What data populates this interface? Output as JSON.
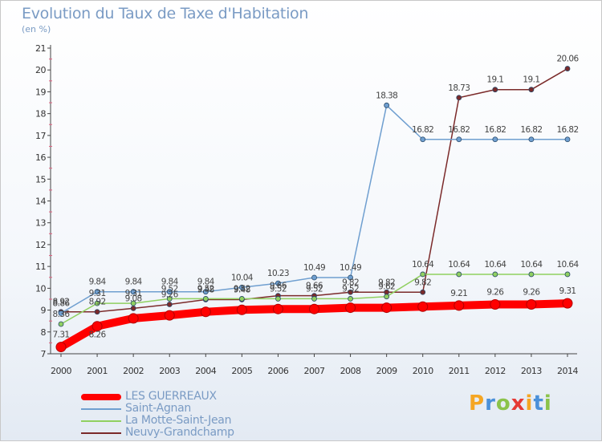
{
  "title": "Evolution du Taux de Taxe d'Habitation",
  "subtitle": "(en %)",
  "logo_text": "Proxiti",
  "chart_data": {
    "type": "line",
    "x": [
      "2000",
      "2001",
      "2002",
      "2003",
      "2004",
      "2005",
      "2006",
      "2007",
      "2008",
      "2009",
      "2010",
      "2011",
      "2012",
      "2013",
      "2014"
    ],
    "ylim": [
      7,
      21
    ],
    "yticks": [
      7,
      8,
      9,
      10,
      11,
      12,
      13,
      14,
      15,
      16,
      17,
      18,
      19,
      20,
      21
    ],
    "grid": false,
    "legend_position": "bottom-left",
    "series": [
      {
        "name": "LES GUERREAUX",
        "color": "#ff0000",
        "values": [
          7.31,
          8.26,
          8.62,
          8.76,
          8.92,
          9.01,
          9.05,
          9.05,
          9.11,
          9.11,
          9.16,
          9.21,
          9.26,
          9.26,
          9.31
        ],
        "labels": [
          "7.31",
          "8.26",
          "",
          "",
          "",
          "",
          "",
          "",
          "",
          "",
          "",
          "9.21",
          "9.26",
          "9.26",
          "9.31"
        ]
      },
      {
        "name": "Saint-Agnan",
        "color": "#6f9fd0",
        "values": [
          8.86,
          9.84,
          9.84,
          9.84,
          9.84,
          10.04,
          10.23,
          10.49,
          10.49,
          18.38,
          16.82,
          16.82,
          16.82,
          16.82,
          16.82
        ],
        "labels": [
          "8.86",
          "9.84",
          "9.84",
          "9.84",
          "9.84",
          "10.04",
          "10.23",
          "10.49",
          "10.49",
          "18.38",
          "16.82",
          "16.82",
          "16.82",
          "16.82",
          "16.82"
        ]
      },
      {
        "name": "La Motte-Saint-Jean",
        "color": "#90d060",
        "values": [
          8.36,
          9.31,
          9.31,
          9.52,
          9.52,
          9.52,
          9.52,
          9.52,
          9.52,
          9.62,
          10.64,
          10.64,
          10.64,
          10.64,
          10.64
        ],
        "labels": [
          "8.36",
          "9.31",
          "9.31",
          "9.52",
          "9.52",
          "9.52",
          "9.52",
          "9.52",
          "9.52",
          "9.62",
          "10.64",
          "10.64",
          "10.64",
          "10.64",
          "10.64"
        ]
      },
      {
        "name": "Neuvy-Grandchamp",
        "color": "#7b2a2a",
        "values": [
          8.92,
          8.92,
          9.08,
          9.26,
          9.48,
          9.48,
          9.66,
          9.66,
          9.82,
          9.82,
          9.82,
          18.73,
          19.1,
          19.1,
          20.06
        ],
        "labels": [
          "8.92",
          "8.92",
          "9.08",
          "9.26",
          "9.48",
          "9.48",
          "9.66",
          "9.66",
          "9.82",
          "9.82",
          "9.82",
          "18.73",
          "19.1",
          "19.1",
          "20.06"
        ]
      }
    ]
  }
}
